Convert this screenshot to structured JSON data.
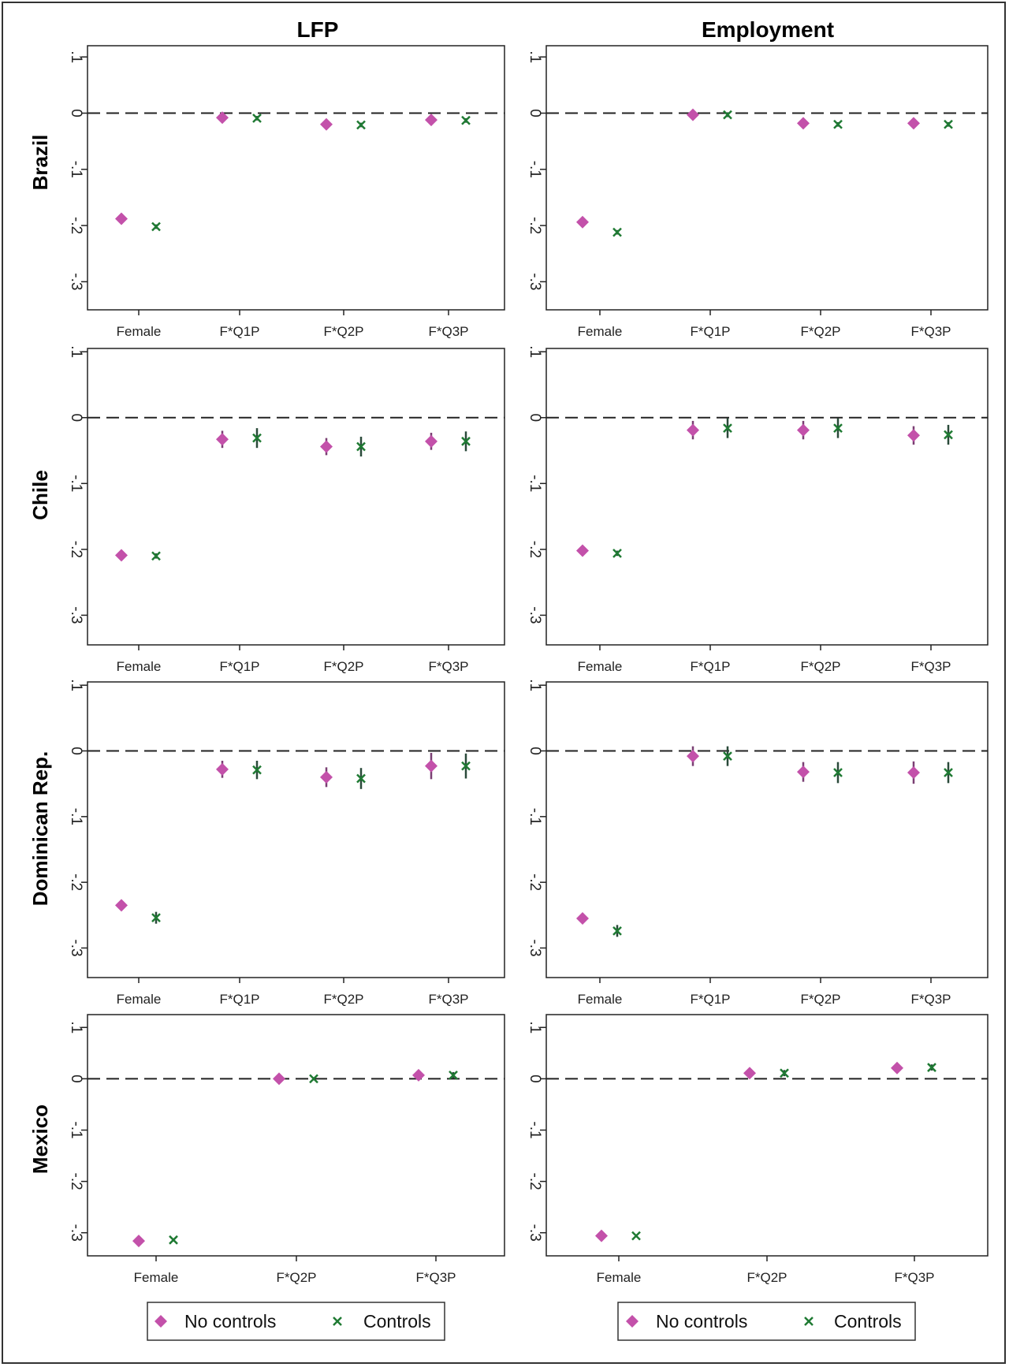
{
  "colors": {
    "no_controls": "#c351aa",
    "controls": "#1f7a33",
    "axis": "#222222",
    "zero_line": "#222222"
  },
  "column_titles": [
    "LFP",
    "Employment"
  ],
  "row_titles": [
    "Brazil",
    "Chile",
    "Dominican Rep.",
    "Mexico"
  ],
  "legend": {
    "items": [
      {
        "label": "No controls",
        "marker": "diamond"
      },
      {
        "label": "Controls",
        "marker": "x"
      }
    ]
  },
  "chart_data": [
    {
      "type": "scatter",
      "panel": "Brazil - LFP",
      "ylim": [
        -0.35,
        0.12
      ],
      "yticks": [
        ".1",
        "0",
        "-.1",
        "-.2",
        "-.3"
      ],
      "zero_line": "dashed",
      "categories": [
        "Female",
        "F*Q1P",
        "F*Q2P",
        "F*Q3P"
      ],
      "series": [
        {
          "name": "No controls",
          "values": [
            -0.188,
            -0.008,
            -0.02,
            -0.012
          ],
          "ci": [
            [
              -0.192,
              -0.184
            ],
            [
              -0.012,
              -0.004
            ],
            [
              -0.024,
              -0.016
            ],
            [
              -0.016,
              -0.008
            ]
          ]
        },
        {
          "name": "Controls",
          "values": [
            -0.202,
            -0.009,
            -0.021,
            -0.013
          ],
          "ci": [
            [
              -0.206,
              -0.198
            ],
            [
              -0.013,
              -0.005
            ],
            [
              -0.025,
              -0.017
            ],
            [
              -0.017,
              -0.009
            ]
          ]
        }
      ]
    },
    {
      "type": "scatter",
      "panel": "Brazil - Employment",
      "ylim": [
        -0.35,
        0.12
      ],
      "yticks": [
        ".1",
        "0",
        "-.1",
        "-.2",
        "-.3"
      ],
      "zero_line": "dashed",
      "categories": [
        "Female",
        "F*Q1P",
        "F*Q2P",
        "F*Q3P"
      ],
      "series": [
        {
          "name": "No controls",
          "values": [
            -0.194,
            -0.003,
            -0.018,
            -0.018
          ],
          "ci": [
            [
              -0.198,
              -0.19
            ],
            [
              -0.007,
              0.001
            ],
            [
              -0.022,
              -0.014
            ],
            [
              -0.022,
              -0.014
            ]
          ]
        },
        {
          "name": "Controls",
          "values": [
            -0.212,
            -0.003,
            -0.02,
            -0.02
          ],
          "ci": [
            [
              -0.216,
              -0.208
            ],
            [
              -0.007,
              0.001
            ],
            [
              -0.024,
              -0.016
            ],
            [
              -0.024,
              -0.016
            ]
          ]
        }
      ]
    },
    {
      "type": "scatter",
      "panel": "Chile - LFP",
      "ylim": [
        -0.345,
        0.105
      ],
      "yticks": [
        ".1",
        "0",
        "-.1",
        "-.2",
        "-.3"
      ],
      "zero_line": "dashed",
      "categories": [
        "Female",
        "F*Q1P",
        "F*Q2P",
        "F*Q3P"
      ],
      "series": [
        {
          "name": "No controls",
          "values": [
            -0.209,
            -0.033,
            -0.044,
            -0.036
          ],
          "ci": [
            [
              -0.213,
              -0.205
            ],
            [
              -0.046,
              -0.02
            ],
            [
              -0.057,
              -0.031
            ],
            [
              -0.049,
              -0.023
            ]
          ]
        },
        {
          "name": "Controls",
          "values": [
            -0.21,
            -0.031,
            -0.044,
            -0.036
          ],
          "ci": [
            [
              -0.214,
              -0.206
            ],
            [
              -0.046,
              -0.016
            ],
            [
              -0.059,
              -0.029
            ],
            [
              -0.051,
              -0.021
            ]
          ]
        }
      ]
    },
    {
      "type": "scatter",
      "panel": "Chile - Employment",
      "ylim": [
        -0.345,
        0.105
      ],
      "yticks": [
        ".1",
        "0",
        "-.1",
        "-.2",
        "-.3"
      ],
      "zero_line": "dashed",
      "categories": [
        "Female",
        "F*Q1P",
        "F*Q2P",
        "F*Q3P"
      ],
      "series": [
        {
          "name": "No controls",
          "values": [
            -0.202,
            -0.019,
            -0.019,
            -0.027
          ],
          "ci": [
            [
              -0.206,
              -0.198
            ],
            [
              -0.033,
              -0.005
            ],
            [
              -0.033,
              -0.005
            ],
            [
              -0.041,
              -0.013
            ]
          ]
        },
        {
          "name": "Controls",
          "values": [
            -0.206,
            -0.016,
            -0.016,
            -0.026
          ],
          "ci": [
            [
              -0.21,
              -0.202
            ],
            [
              -0.031,
              -0.001
            ],
            [
              -0.031,
              -0.001
            ],
            [
              -0.041,
              -0.011
            ]
          ]
        }
      ]
    },
    {
      "type": "scatter",
      "panel": "Dominican Rep. - LFP",
      "ylim": [
        -0.345,
        0.105
      ],
      "yticks": [
        ".1",
        "0",
        "-.1",
        "-.2",
        "-.3"
      ],
      "zero_line": "dashed",
      "categories": [
        "Female",
        "F*Q1P",
        "F*Q2P",
        "F*Q3P"
      ],
      "series": [
        {
          "name": "No controls",
          "values": [
            -0.235,
            -0.028,
            -0.04,
            -0.023
          ],
          "ci": [
            [
              -0.24,
              -0.23
            ],
            [
              -0.041,
              -0.015
            ],
            [
              -0.055,
              -0.025
            ],
            [
              -0.043,
              -0.003
            ]
          ]
        },
        {
          "name": "Controls",
          "values": [
            -0.254,
            -0.029,
            -0.042,
            -0.023
          ],
          "ci": [
            [
              -0.263,
              -0.245
            ],
            [
              -0.043,
              -0.015
            ],
            [
              -0.058,
              -0.026
            ],
            [
              -0.042,
              -0.004
            ]
          ]
        }
      ]
    },
    {
      "type": "scatter",
      "panel": "Dominican Rep. - Employment",
      "ylim": [
        -0.345,
        0.105
      ],
      "yticks": [
        ".1",
        "0",
        "-.1",
        "-.2",
        "-.3"
      ],
      "zero_line": "dashed",
      "categories": [
        "Female",
        "F*Q1P",
        "F*Q2P",
        "F*Q3P"
      ],
      "series": [
        {
          "name": "No controls",
          "values": [
            -0.255,
            -0.008,
            -0.032,
            -0.033
          ],
          "ci": [
            [
              -0.26,
              -0.25
            ],
            [
              -0.023,
              0.007
            ],
            [
              -0.047,
              -0.017
            ],
            [
              -0.05,
              -0.016
            ]
          ]
        },
        {
          "name": "Controls",
          "values": [
            -0.274,
            -0.008,
            -0.033,
            -0.033
          ],
          "ci": [
            [
              -0.283,
              -0.265
            ],
            [
              -0.023,
              0.007
            ],
            [
              -0.049,
              -0.017
            ],
            [
              -0.049,
              -0.017
            ]
          ]
        }
      ]
    },
    {
      "type": "scatter",
      "panel": "Mexico - LFP",
      "ylim": [
        -0.345,
        0.125
      ],
      "yticks": [
        ".1",
        "0",
        "-.1",
        "-.2",
        "-.3"
      ],
      "zero_line": "dashed",
      "categories": [
        "Female",
        "F*Q2P",
        "F*Q3P"
      ],
      "series": [
        {
          "name": "No controls",
          "values": [
            -0.316,
            0.0,
            0.007
          ],
          "ci": [
            [
              -0.319,
              -0.313
            ],
            [
              -0.003,
              0.003
            ],
            [
              0.004,
              0.01
            ]
          ]
        },
        {
          "name": "Controls",
          "values": [
            -0.314,
            0.0,
            0.007
          ],
          "ci": [
            [
              -0.317,
              -0.311
            ],
            [
              -0.003,
              0.003
            ],
            [
              0.001,
              0.013
            ]
          ]
        }
      ]
    },
    {
      "type": "scatter",
      "panel": "Mexico - Employment",
      "ylim": [
        -0.345,
        0.125
      ],
      "yticks": [
        ".1",
        "0",
        "-.1",
        "-.2",
        "-.3"
      ],
      "zero_line": "dashed",
      "categories": [
        "Female",
        "F*Q2P",
        "F*Q3P"
      ],
      "series": [
        {
          "name": "No controls",
          "values": [
            -0.306,
            0.011,
            0.021
          ],
          "ci": [
            [
              -0.309,
              -0.303
            ],
            [
              0.008,
              0.014
            ],
            [
              0.018,
              0.024
            ]
          ]
        },
        {
          "name": "Controls",
          "values": [
            -0.306,
            0.011,
            0.022
          ],
          "ci": [
            [
              -0.309,
              -0.303
            ],
            [
              0.005,
              0.017
            ],
            [
              0.016,
              0.028
            ]
          ]
        }
      ]
    }
  ]
}
